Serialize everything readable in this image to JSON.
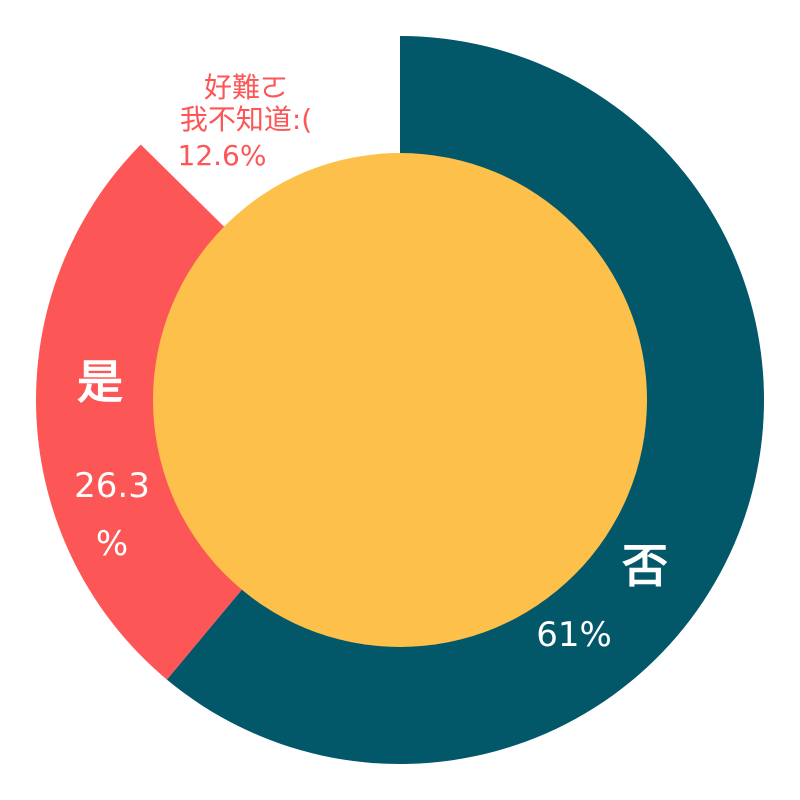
{
  "chart_data": {
    "type": "pie",
    "style": "donut",
    "slices": [
      {
        "name": "否",
        "value": 61,
        "value_label": "61%",
        "color": "#025768"
      },
      {
        "name": "是",
        "value": 26.3,
        "value_label": "26.3\n%",
        "color": "#fc5656"
      },
      {
        "name": "好難ㄛ\n我不知道:(",
        "value": 12.6,
        "value_label": "12.6%",
        "color": "#ffffff"
      }
    ],
    "center_color": "#fdc04a",
    "label_colors": {
      "on_slice": "#ffffff",
      "outside": "#fc5656"
    }
  }
}
